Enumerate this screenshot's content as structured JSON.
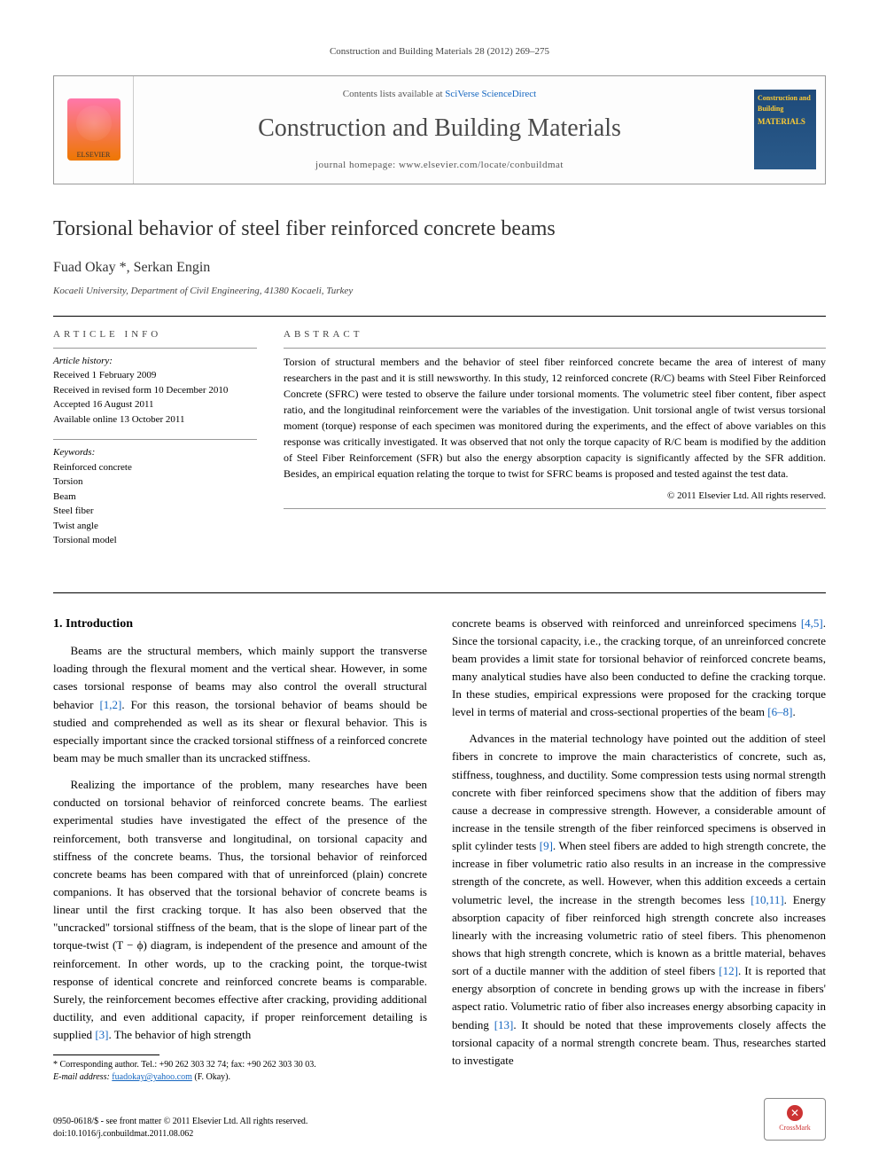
{
  "running_head": "Construction and Building Materials 28 (2012) 269–275",
  "header": {
    "contents_prefix": "Contents lists available at ",
    "contents_link": "SciVerse ScienceDirect",
    "journal_title": "Construction and Building Materials",
    "homepage_prefix": "journal homepage: ",
    "homepage_url": "www.elsevier.com/locate/conbuildmat",
    "publisher_logo_label": "ELSEVIER",
    "cover_brand": "Construction and Building",
    "cover_main": "MATERIALS"
  },
  "article": {
    "title": "Torsional behavior of steel fiber reinforced concrete beams",
    "authors": "Fuad Okay *, Serkan Engin",
    "affiliation": "Kocaeli University, Department of Civil Engineering, 41380 Kocaeli, Turkey"
  },
  "info": {
    "label": "ARTICLE INFO",
    "history_heading": "Article history:",
    "history": [
      "Received 1 February 2009",
      "Received in revised form 10 December 2010",
      "Accepted 16 August 2011",
      "Available online 13 October 2011"
    ],
    "keywords_heading": "Keywords:",
    "keywords": [
      "Reinforced concrete",
      "Torsion",
      "Beam",
      "Steel fiber",
      "Twist angle",
      "Torsional model"
    ]
  },
  "abstract": {
    "label": "ABSTRACT",
    "text": "Torsion of structural members and the behavior of steel fiber reinforced concrete became the area of interest of many researchers in the past and it is still newsworthy. In this study, 12 reinforced concrete (R/C) beams with Steel Fiber Reinforced Concrete (SFRC) were tested to observe the failure under torsional moments. The volumetric steel fiber content, fiber aspect ratio, and the longitudinal reinforcement were the variables of the investigation. Unit torsional angle of twist versus torsional moment (torque) response of each specimen was monitored during the experiments, and the effect of above variables on this response was critically investigated. It was observed that not only the torque capacity of R/C beam is modified by the addition of Steel Fiber Reinforcement (SFR) but also the energy absorption capacity is significantly affected by the SFR addition. Besides, an empirical equation relating the torque to twist for SFRC beams is proposed and tested against the test data.",
    "copyright": "© 2011 Elsevier Ltd. All rights reserved."
  },
  "body": {
    "intro_heading": "1. Introduction",
    "p1": "Beams are the structural members, which mainly support the transverse loading through the flexural moment and the vertical shear. However, in some cases torsional response of beams may also control the overall structural behavior [1,2]. For this reason, the torsional behavior of beams should be studied and comprehended as well as its shear or flexural behavior. This is especially important since the cracked torsional stiffness of a reinforced concrete beam may be much smaller than its uncracked stiffness.",
    "p2": "Realizing the importance of the problem, many researches have been conducted on torsional behavior of reinforced concrete beams. The earliest experimental studies have investigated the effect of the presence of the reinforcement, both transverse and longitudinal, on torsional capacity and stiffness of the concrete beams. Thus, the torsional behavior of reinforced concrete beams has been compared with that of unreinforced (plain) concrete companions. It has observed that the torsional behavior of concrete beams is linear until the first cracking torque. It has also been observed that the \"uncracked\" torsional stiffness of the beam, that is the slope of linear part of the torque-twist (T − ϕ) diagram, is independent of the presence and amount of the reinforcement. In other words, up to the cracking point, the torque-twist response of identical concrete and reinforced concrete beams is comparable. Surely, the reinforcement becomes effective after cracking, providing additional ductility, and even additional capacity, if proper reinforcement detailing is supplied [3]. The behavior of high strength",
    "p3": "concrete beams is observed with reinforced and unreinforced specimens [4,5]. Since the torsional capacity, i.e., the cracking torque, of an unreinforced concrete beam provides a limit state for torsional behavior of reinforced concrete beams, many analytical studies have also been conducted to define the cracking torque. In these studies, empirical expressions were proposed for the cracking torque level in terms of material and cross-sectional properties of the beam [6–8].",
    "p4": "Advances in the material technology have pointed out the addition of steel fibers in concrete to improve the main characteristics of concrete, such as, stiffness, toughness, and ductility. Some compression tests using normal strength concrete with fiber reinforced specimens show that the addition of fibers may cause a decrease in compressive strength. However, a considerable amount of increase in the tensile strength of the fiber reinforced specimens is observed in split cylinder tests [9]. When steel fibers are added to high strength concrete, the increase in fiber volumetric ratio also results in an increase in the compressive strength of the concrete, as well. However, when this addition exceeds a certain volumetric level, the increase in the strength becomes less [10,11]. Energy absorption capacity of fiber reinforced high strength concrete also increases linearly with the increasing volumetric ratio of steel fibers. This phenomenon shows that high strength concrete, which is known as a brittle material, behaves sort of a ductile manner with the addition of steel fibers [12]. It is reported that energy absorption of concrete in bending grows up with the increase in fibers' aspect ratio. Volumetric ratio of fiber also increases energy absorbing capacity in bending [13]. It should be noted that these improvements closely affects the torsional capacity of a normal strength concrete beam. Thus, researches started to investigate"
  },
  "footnote": {
    "corr_label": "* Corresponding author. Tel.: +90 262 303 32 74; fax: +90 262 303 30 03.",
    "email_label": "E-mail address:",
    "email": "fuadokay@yahoo.com",
    "email_who": "(F. Okay)."
  },
  "footer": {
    "line1": "0950-0618/$ - see front matter © 2011 Elsevier Ltd. All rights reserved.",
    "line2": "doi:10.1016/j.conbuildmat.2011.08.062",
    "crossmark": "CrossMark"
  },
  "colors": {
    "link": "#1566c0",
    "text": "#000000",
    "muted": "#555555"
  }
}
